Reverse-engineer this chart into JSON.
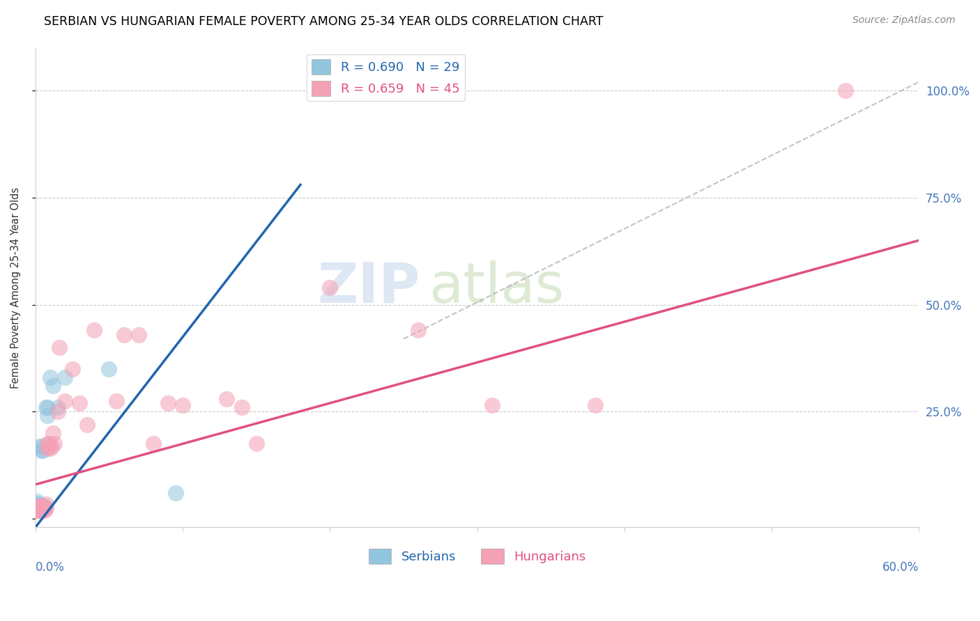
{
  "title": "SERBIAN VS HUNGARIAN FEMALE POVERTY AMONG 25-34 YEAR OLDS CORRELATION CHART",
  "source": "Source: ZipAtlas.com",
  "ylabel": "Female Poverty Among 25-34 Year Olds",
  "color_serbian": "#92c5de",
  "color_hungarian": "#f4a0b5",
  "color_serbian_line": "#2166ac",
  "color_hungarian_line": "#e05080",
  "color_tick_label": "#4477bb",
  "x_min": 0.0,
  "x_max": 0.6,
  "y_min": -0.02,
  "y_max": 1.1,
  "serbian_x": [
    0.001,
    0.001,
    0.001,
    0.002,
    0.002,
    0.002,
    0.002,
    0.003,
    0.003,
    0.003,
    0.003,
    0.004,
    0.004,
    0.004,
    0.005,
    0.005,
    0.005,
    0.005,
    0.006,
    0.006,
    0.007,
    0.008,
    0.008,
    0.01,
    0.012,
    0.015,
    0.02,
    0.05,
    0.095
  ],
  "serbian_y": [
    0.03,
    0.035,
    0.04,
    0.02,
    0.025,
    0.03,
    0.035,
    0.02,
    0.025,
    0.03,
    0.17,
    0.02,
    0.025,
    0.16,
    0.025,
    0.03,
    0.16,
    0.17,
    0.025,
    0.03,
    0.26,
    0.24,
    0.26,
    0.33,
    0.31,
    0.26,
    0.33,
    0.35,
    0.06
  ],
  "hungarian_x": [
    0.001,
    0.001,
    0.002,
    0.002,
    0.002,
    0.003,
    0.003,
    0.003,
    0.004,
    0.004,
    0.005,
    0.005,
    0.005,
    0.006,
    0.006,
    0.007,
    0.007,
    0.008,
    0.008,
    0.009,
    0.01,
    0.011,
    0.012,
    0.013,
    0.015,
    0.016,
    0.02,
    0.025,
    0.03,
    0.035,
    0.04,
    0.055,
    0.06,
    0.07,
    0.08,
    0.09,
    0.1,
    0.13,
    0.14,
    0.15,
    0.2,
    0.26,
    0.31,
    0.38,
    0.55
  ],
  "hungarian_y": [
    0.02,
    0.025,
    0.02,
    0.025,
    0.03,
    0.02,
    0.025,
    0.03,
    0.02,
    0.025,
    0.02,
    0.025,
    0.03,
    0.02,
    0.025,
    0.025,
    0.035,
    0.165,
    0.175,
    0.175,
    0.165,
    0.17,
    0.2,
    0.175,
    0.25,
    0.4,
    0.275,
    0.35,
    0.27,
    0.22,
    0.44,
    0.275,
    0.43,
    0.43,
    0.175,
    0.27,
    0.265,
    0.28,
    0.26,
    0.175,
    0.54,
    0.44,
    0.265,
    0.265,
    1.0
  ],
  "serbian_line_x": [
    0.0,
    0.18
  ],
  "serbian_line_y": [
    -0.02,
    0.78
  ],
  "hungarian_line_x": [
    0.0,
    0.6
  ],
  "hungarian_line_y": [
    0.08,
    0.65
  ],
  "ref_line_x": [
    0.25,
    0.6
  ],
  "ref_line_y": [
    0.42,
    1.02
  ],
  "legend1_label": "R = 0.690   N = 29",
  "legend2_label": "R = 0.659   N = 45",
  "bottom_legend1": "Serbians",
  "bottom_legend2": "Hungarians"
}
